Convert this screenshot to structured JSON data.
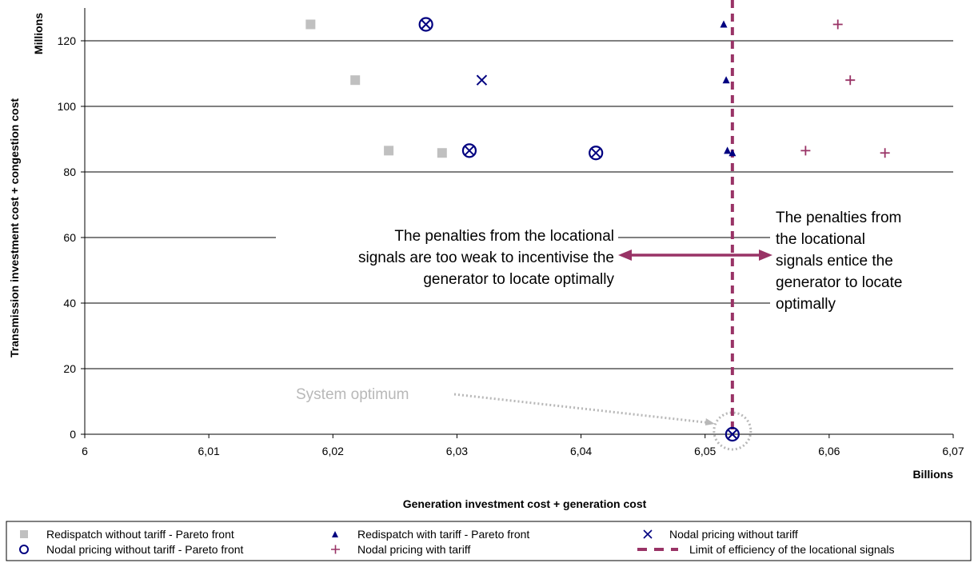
{
  "chart_data": {
    "type": "scatter",
    "xlabel": "Generation investment cost + generation cost",
    "ylabel": "Transmission investment cost + congestion cost",
    "x_unit_label": "Billions",
    "y_unit_label": "Millions",
    "xlim": [
      6,
      6.07
    ],
    "ylim": [
      0,
      130
    ],
    "x_ticks": [
      6,
      6.01,
      6.02,
      6.03,
      6.04,
      6.05,
      6.06,
      6.07
    ],
    "x_tick_labels": [
      "6",
      "6,01",
      "6,02",
      "6,03",
      "6,04",
      "6,05",
      "6,06",
      "6,07"
    ],
    "y_ticks": [
      0,
      20,
      40,
      60,
      80,
      100,
      120
    ],
    "y_tick_labels": [
      "0",
      "20",
      "40",
      "60",
      "80",
      "100",
      "120"
    ],
    "grid": "horizontal",
    "series": [
      {
        "name": "Redispatch without tariff - Pareto front",
        "marker": "square",
        "color": "#c0c0c0",
        "points": [
          [
            6.0182,
            125
          ],
          [
            6.0218,
            108
          ],
          [
            6.0245,
            86.5
          ],
          [
            6.0288,
            85.8
          ]
        ]
      },
      {
        "name": "Redispatch with tariff - Pareto front",
        "marker": "triangle",
        "color": "#000080",
        "points": [
          [
            6.0515,
            125
          ],
          [
            6.0517,
            108
          ],
          [
            6.0518,
            86.5
          ],
          [
            6.0522,
            85.8
          ]
        ]
      },
      {
        "name": "Nodal pricing without tariff",
        "marker": "x",
        "color": "#000080",
        "points": [
          [
            6.0275,
            125
          ],
          [
            6.032,
            108
          ],
          [
            6.031,
            86.5
          ],
          [
            6.0412,
            85.8
          ],
          [
            6.0522,
            0
          ]
        ]
      },
      {
        "name": "Nodal pricing without tariff - Pareto front",
        "marker": "circle",
        "color": "#000080",
        "points": [
          [
            6.0275,
            125
          ],
          [
            6.031,
            86.5
          ],
          [
            6.0412,
            85.8
          ],
          [
            6.0522,
            0
          ]
        ]
      },
      {
        "name": "Nodal pricing with tariff",
        "marker": "plus",
        "color": "#993366",
        "points": [
          [
            6.0607,
            125
          ],
          [
            6.0617,
            108
          ],
          [
            6.0581,
            86.5
          ],
          [
            6.0645,
            85.8
          ]
        ]
      }
    ],
    "limit_line": {
      "name": "Limit of efficiency of the locational signals",
      "x": 6.0522,
      "color": "#993366"
    },
    "annotations": {
      "left_text": [
        "The penalties from the locational",
        "signals are too weak to incentivise the",
        "generator to locate optimally"
      ],
      "right_text": [
        "The penalties from",
        "the locational",
        "signals entice the",
        "generator to locate",
        "optimally"
      ],
      "optimum_text": "System optimum",
      "optimum_point": [
        6.0522,
        0
      ]
    },
    "legend_position": "bottom"
  }
}
